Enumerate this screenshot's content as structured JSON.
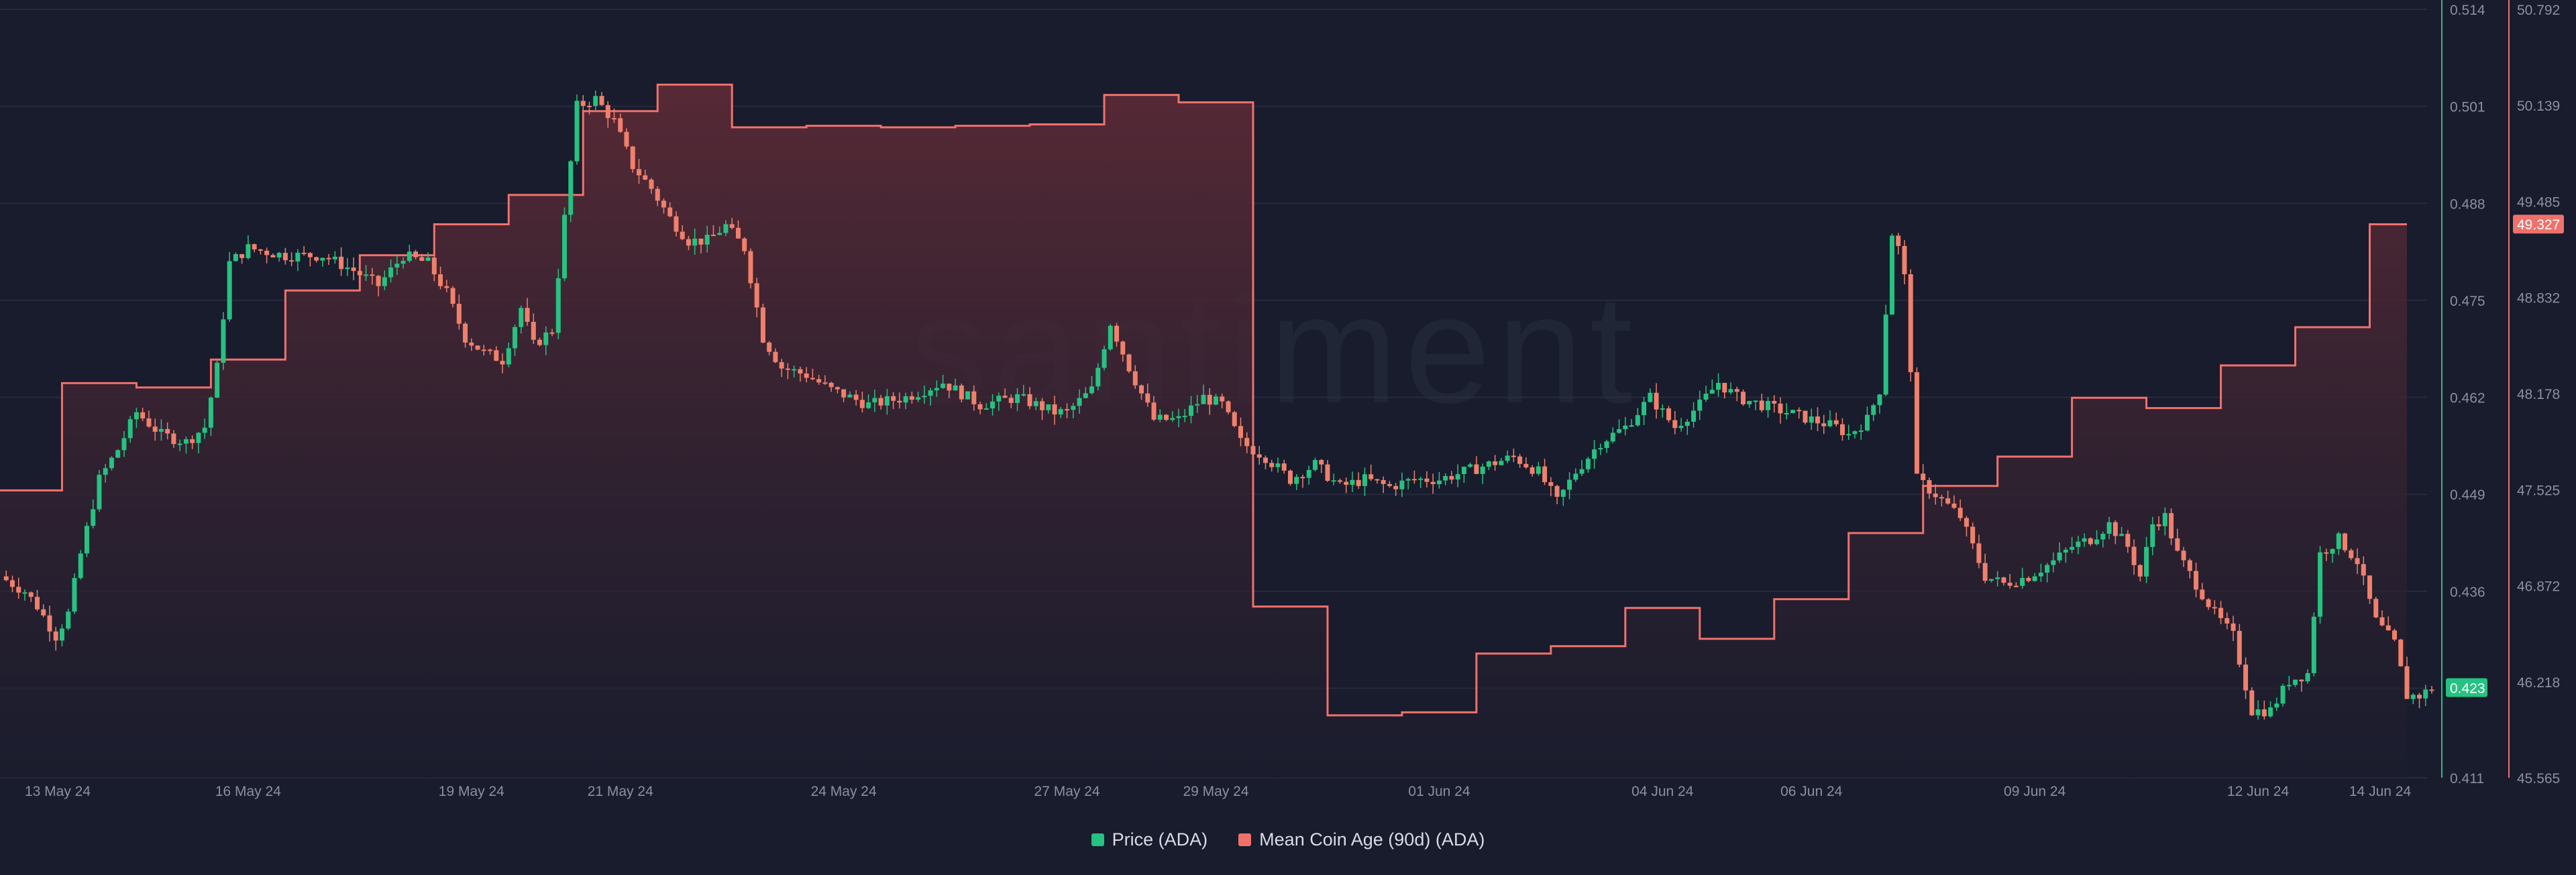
{
  "watermark": "santiment",
  "legend": {
    "price_label": "Price (ADA)",
    "coin_age_label": "Mean Coin Age (90d) (ADA)"
  },
  "colors": {
    "background": "#181c2c",
    "grid": "#262b3d",
    "up": "#26c281",
    "down": "#f0806c",
    "coin_age_line": "#f0716c",
    "price_axis": "#26c281",
    "coin_age_axis": "#f0716c",
    "axis_text": "#8a90a2"
  },
  "chart_data": {
    "type": "candlestick+area",
    "x_range": [
      "2024-05-12T16:00",
      "2024-06-14T00:00"
    ],
    "x_ticks": [
      {
        "date": "2024-05-13",
        "label": "13 May 24"
      },
      {
        "date": "2024-05-16",
        "label": "16 May 24"
      },
      {
        "date": "2024-05-19",
        "label": "19 May 24"
      },
      {
        "date": "2024-05-21",
        "label": "21 May 24"
      },
      {
        "date": "2024-05-24",
        "label": "24 May 24"
      },
      {
        "date": "2024-05-27",
        "label": "27 May 24"
      },
      {
        "date": "2024-05-29",
        "label": "29 May 24"
      },
      {
        "date": "2024-06-01",
        "label": "01 Jun 24"
      },
      {
        "date": "2024-06-04",
        "label": "04 Jun 24"
      },
      {
        "date": "2024-06-06",
        "label": "06 Jun 24"
      },
      {
        "date": "2024-06-09",
        "label": "09 Jun 24"
      },
      {
        "date": "2024-06-12",
        "label": "12 Jun 24"
      },
      {
        "date": "2024-06-14",
        "label": "14 Jun 24"
      }
    ],
    "price_axis": {
      "name": "Price (ADA)",
      "ylim": [
        0.411,
        0.514
      ],
      "ticks": [
        "0.514",
        "0.501",
        "0.488",
        "0.475",
        "0.462",
        "0.449",
        "0.436",
        "0.423",
        "0.411"
      ],
      "last_value_label": "0.423"
    },
    "coin_age_axis": {
      "name": "Mean Coin Age (90d) (ADA)",
      "ylim": [
        45.565,
        50.792
      ],
      "ticks": [
        "50.792",
        "50.139",
        "49.485",
        "48.832",
        "48.178",
        "47.525",
        "46.872",
        "46.218",
        "45.565"
      ],
      "last_value_label": "49.327"
    },
    "price_anchors": [
      [
        "2024-05-12T16:00",
        0.438
      ],
      [
        "2024-05-13T00:00",
        0.436
      ],
      [
        "2024-05-13T04:00",
        0.434
      ],
      [
        "2024-05-13T10:00",
        0.43
      ],
      [
        "2024-05-13T14:00",
        0.433
      ],
      [
        "2024-05-13T18:00",
        0.441
      ],
      [
        "2024-05-14T00:00",
        0.451
      ],
      [
        "2024-05-14T06:00",
        0.455
      ],
      [
        "2024-05-14T12:00",
        0.46
      ],
      [
        "2024-05-14T20:00",
        0.457
      ],
      [
        "2024-05-15T04:00",
        0.456
      ],
      [
        "2024-05-15T10:00",
        0.458
      ],
      [
        "2024-05-15T14:00",
        0.466
      ],
      [
        "2024-05-15T18:00",
        0.48
      ],
      [
        "2024-05-16T00:00",
        0.482
      ],
      [
        "2024-05-16T12:00",
        0.481
      ],
      [
        "2024-05-17T00:00",
        0.481
      ],
      [
        "2024-05-17T10:00",
        0.479
      ],
      [
        "2024-05-17T18:00",
        0.477
      ],
      [
        "2024-05-18T02:00",
        0.481
      ],
      [
        "2024-05-18T10:00",
        0.48
      ],
      [
        "2024-05-18T16:00",
        0.476
      ],
      [
        "2024-05-18T22:00",
        0.47
      ],
      [
        "2024-05-19T04:00",
        0.468
      ],
      [
        "2024-05-19T10:00",
        0.467
      ],
      [
        "2024-05-19T16:00",
        0.474
      ],
      [
        "2024-05-19T20:00",
        0.469
      ],
      [
        "2024-05-20T02:00",
        0.471
      ],
      [
        "2024-05-20T06:00",
        0.486
      ],
      [
        "2024-05-20T10:00",
        0.501
      ],
      [
        "2024-05-20T16:00",
        0.502
      ],
      [
        "2024-05-20T22:00",
        0.499
      ],
      [
        "2024-05-21T04:00",
        0.493
      ],
      [
        "2024-05-21T10:00",
        0.49
      ],
      [
        "2024-05-21T16:00",
        0.486
      ],
      [
        "2024-05-21T22:00",
        0.483
      ],
      [
        "2024-05-22T04:00",
        0.483
      ],
      [
        "2024-05-22T10:00",
        0.485
      ],
      [
        "2024-05-22T16:00",
        0.482
      ],
      [
        "2024-05-22T22:00",
        0.47
      ],
      [
        "2024-05-23T04:00",
        0.466
      ],
      [
        "2024-05-23T12:00",
        0.465
      ],
      [
        "2024-05-23T20:00",
        0.463
      ],
      [
        "2024-05-24T08:00",
        0.461
      ],
      [
        "2024-05-24T20:00",
        0.462
      ],
      [
        "2024-05-25T08:00",
        0.464
      ],
      [
        "2024-05-25T20:00",
        0.461
      ],
      [
        "2024-05-26T08:00",
        0.462
      ],
      [
        "2024-05-26T20:00",
        0.46
      ],
      [
        "2024-05-27T00:00",
        0.46
      ],
      [
        "2024-05-27T08:00",
        0.463
      ],
      [
        "2024-05-27T14:00",
        0.472
      ],
      [
        "2024-05-27T20:00",
        0.466
      ],
      [
        "2024-05-28T04:00",
        0.459
      ],
      [
        "2024-05-28T12:00",
        0.459
      ],
      [
        "2024-05-28T20:00",
        0.462
      ],
      [
        "2024-05-29T02:00",
        0.461
      ],
      [
        "2024-05-29T08:00",
        0.456
      ],
      [
        "2024-05-29T16:00",
        0.454
      ],
      [
        "2024-05-30T00:00",
        0.451
      ],
      [
        "2024-05-30T08:00",
        0.453
      ],
      [
        "2024-05-30T16:00",
        0.45
      ],
      [
        "2024-05-31T00:00",
        0.451
      ],
      [
        "2024-05-31T08:00",
        0.45
      ],
      [
        "2024-05-31T16:00",
        0.451
      ],
      [
        "2024-06-01T00:00",
        0.451
      ],
      [
        "2024-06-01T08:00",
        0.452
      ],
      [
        "2024-06-01T16:00",
        0.453
      ],
      [
        "2024-06-02T00:00",
        0.454
      ],
      [
        "2024-06-02T08:00",
        0.452
      ],
      [
        "2024-06-02T14:00",
        0.448
      ],
      [
        "2024-06-02T20:00",
        0.452
      ],
      [
        "2024-06-03T04:00",
        0.456
      ],
      [
        "2024-06-03T12:00",
        0.458
      ],
      [
        "2024-06-03T20:00",
        0.462
      ],
      [
        "2024-06-04T04:00",
        0.458
      ],
      [
        "2024-06-04T12:00",
        0.461
      ],
      [
        "2024-06-04T18:00",
        0.464
      ],
      [
        "2024-06-05T00:00",
        0.462
      ],
      [
        "2024-06-05T08:00",
        0.461
      ],
      [
        "2024-06-05T16:00",
        0.46
      ],
      [
        "2024-06-06T00:00",
        0.459
      ],
      [
        "2024-06-06T08:00",
        0.458
      ],
      [
        "2024-06-06T12:00",
        0.457
      ],
      [
        "2024-06-06T18:00",
        0.459
      ],
      [
        "2024-06-06T22:00",
        0.463
      ],
      [
        "2024-06-07T02:00",
        0.484
      ],
      [
        "2024-06-07T04:00",
        0.482
      ],
      [
        "2024-06-07T06:00",
        0.478
      ],
      [
        "2024-06-07T08:00",
        0.466
      ],
      [
        "2024-06-07T10:00",
        0.451
      ],
      [
        "2024-06-07T16:00",
        0.449
      ],
      [
        "2024-06-08T00:00",
        0.446
      ],
      [
        "2024-06-08T08:00",
        0.438
      ],
      [
        "2024-06-08T14:00",
        0.437
      ],
      [
        "2024-06-08T22:00",
        0.438
      ],
      [
        "2024-06-09T06:00",
        0.44
      ],
      [
        "2024-06-09T12:00",
        0.442
      ],
      [
        "2024-06-09T18:00",
        0.443
      ],
      [
        "2024-06-10T00:00",
        0.445
      ],
      [
        "2024-06-10T06:00",
        0.442
      ],
      [
        "2024-06-10T10:00",
        0.438
      ],
      [
        "2024-06-10T14:00",
        0.445
      ],
      [
        "2024-06-10T18:00",
        0.446
      ],
      [
        "2024-06-10T22:00",
        0.441
      ],
      [
        "2024-06-11T04:00",
        0.437
      ],
      [
        "2024-06-11T10:00",
        0.433
      ],
      [
        "2024-06-11T16:00",
        0.43
      ],
      [
        "2024-06-11T22:00",
        0.42
      ],
      [
        "2024-06-12T04:00",
        0.42
      ],
      [
        "2024-06-12T10:00",
        0.424
      ],
      [
        "2024-06-12T16:00",
        0.425
      ],
      [
        "2024-06-12T20:00",
        0.441
      ],
      [
        "2024-06-13T02:00",
        0.443
      ],
      [
        "2024-06-13T08:00",
        0.44
      ],
      [
        "2024-06-13T14:00",
        0.432
      ],
      [
        "2024-06-13T20:00",
        0.429
      ],
      [
        "2024-06-14T00:00",
        0.422
      ],
      [
        "2024-06-14T04:00",
        0.422
      ],
      [
        "2024-06-14T08:00",
        0.423
      ]
    ],
    "coin_age_steps": [
      [
        "2024-05-12T16:00",
        47.52
      ],
      [
        "2024-05-13T12:00",
        48.25
      ],
      [
        "2024-05-14T12:00",
        48.22
      ],
      [
        "2024-05-15T12:00",
        48.41
      ],
      [
        "2024-05-16T12:00",
        48.88
      ],
      [
        "2024-05-17T12:00",
        49.12
      ],
      [
        "2024-05-18T12:00",
        49.33
      ],
      [
        "2024-05-19T12:00",
        49.53
      ],
      [
        "2024-05-20T12:00",
        50.1
      ],
      [
        "2024-05-21T12:00",
        50.28
      ],
      [
        "2024-05-22T12:00",
        49.99
      ],
      [
        "2024-05-23T12:00",
        50.0
      ],
      [
        "2024-05-24T12:00",
        49.99
      ],
      [
        "2024-05-25T12:00",
        50.0
      ],
      [
        "2024-05-26T12:00",
        50.01
      ],
      [
        "2024-05-27T12:00",
        50.21
      ],
      [
        "2024-05-28T12:00",
        50.16
      ],
      [
        "2024-05-29T12:00",
        46.73
      ],
      [
        "2024-05-30T12:00",
        45.99
      ],
      [
        "2024-05-31T12:00",
        46.01
      ],
      [
        "2024-06-01T12:00",
        46.41
      ],
      [
        "2024-06-02T12:00",
        46.46
      ],
      [
        "2024-06-03T12:00",
        46.72
      ],
      [
        "2024-06-04T12:00",
        46.51
      ],
      [
        "2024-06-05T12:00",
        46.78
      ],
      [
        "2024-06-06T12:00",
        47.23
      ],
      [
        "2024-06-07T12:00",
        47.55
      ],
      [
        "2024-06-08T12:00",
        47.75
      ],
      [
        "2024-06-09T12:00",
        48.15
      ],
      [
        "2024-06-10T12:00",
        48.08
      ],
      [
        "2024-06-11T12:00",
        48.37
      ],
      [
        "2024-06-12T12:00",
        48.63
      ],
      [
        "2024-06-13T12:00",
        49.33
      ],
      [
        "2024-06-14T00:00",
        49.33
      ]
    ]
  }
}
